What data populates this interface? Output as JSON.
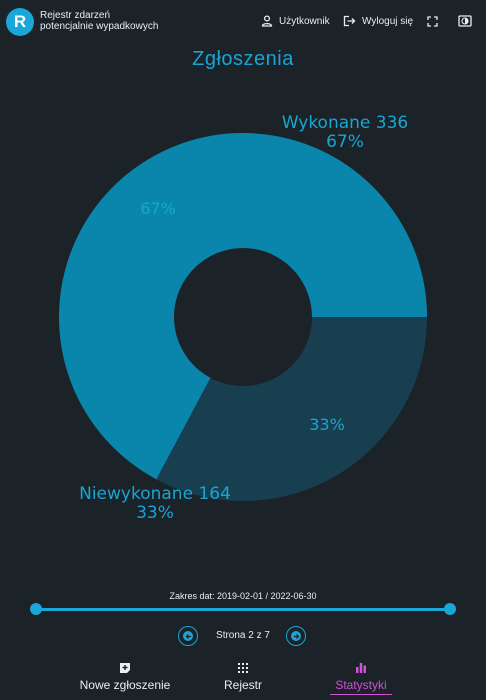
{
  "header": {
    "logo_letter": "R",
    "app_title_line1": "Rejestr zdarzeń",
    "app_title_line2": "potencjalnie wypadkowych",
    "user_label": "Użytkownik",
    "logout_label": "Wyloguj się"
  },
  "page_title": "Zgłoszenia",
  "chart_data": {
    "type": "pie",
    "donut": true,
    "slices": [
      {
        "label": "Wykonane",
        "value": 336,
        "percent": "67%",
        "color": "#0a86ad"
      },
      {
        "label": "Niewykonane",
        "value": 164,
        "percent": "33%",
        "color": "#173f4f"
      }
    ],
    "outer_labels": [
      {
        "line1": "Wykonane 336",
        "line2": "67%"
      },
      {
        "line1": "Niewykonane 164",
        "line2": "33%"
      }
    ]
  },
  "date_range": {
    "label": "Zakres dat: 2019-02-01 / 2022-06-30",
    "start_fraction": 0,
    "end_fraction": 1
  },
  "pager": {
    "label": "Strona 2 z 7"
  },
  "nav": {
    "new_report": "Nowe zgłoszenie",
    "registry": "Rejestr",
    "stats": "Statystyki"
  },
  "colors": {
    "accent": "#17a6d4",
    "active": "#d24fd7",
    "background": "#1b2228"
  }
}
